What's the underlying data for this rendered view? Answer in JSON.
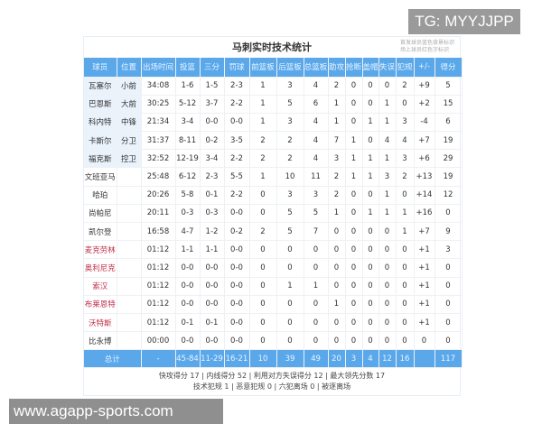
{
  "watermark": "TG: MYYJJPP",
  "site": "www.agapp-sports.com",
  "title": "马刺实时技术统计",
  "note": [
    "首发球员蓝色背景标识",
    "场上球员红色字标识"
  ],
  "colors": {
    "header": "#5aa8ea",
    "starter_bg": "#eaf2fb",
    "on_court_text": "#c0304a"
  },
  "headers": [
    "球员",
    "位置",
    "出场时间",
    "投篮",
    "三分",
    "罚球",
    "前篮板",
    "后篮板",
    "总篮板",
    "助攻",
    "抢断",
    "盖帽",
    "失误",
    "犯规",
    "+/-",
    "得分"
  ],
  "rows": [
    {
      "starter": true,
      "on_court": false,
      "cells": [
        "瓦塞尔",
        "小前",
        "34:08",
        "1-6",
        "1-5",
        "2-3",
        "1",
        "3",
        "4",
        "2",
        "0",
        "0",
        "0",
        "2",
        "+9",
        "5"
      ]
    },
    {
      "starter": true,
      "on_court": false,
      "cells": [
        "巴恩斯",
        "大前",
        "30:25",
        "5-12",
        "3-7",
        "2-2",
        "1",
        "5",
        "6",
        "1",
        "0",
        "0",
        "1",
        "0",
        "+2",
        "15"
      ]
    },
    {
      "starter": true,
      "on_court": false,
      "cells": [
        "科内特",
        "中锋",
        "21:34",
        "3-4",
        "0-0",
        "0-0",
        "1",
        "3",
        "4",
        "1",
        "0",
        "1",
        "1",
        "3",
        "-4",
        "6"
      ]
    },
    {
      "starter": true,
      "on_court": false,
      "cells": [
        "卡斯尔",
        "分卫",
        "31:37",
        "8-11",
        "0-2",
        "3-5",
        "2",
        "2",
        "4",
        "7",
        "1",
        "0",
        "4",
        "4",
        "+7",
        "19"
      ]
    },
    {
      "starter": true,
      "on_court": false,
      "cells": [
        "福克斯",
        "控卫",
        "32:52",
        "12-19",
        "3-4",
        "2-2",
        "2",
        "2",
        "4",
        "3",
        "1",
        "1",
        "1",
        "3",
        "+6",
        "29"
      ]
    },
    {
      "starter": false,
      "on_court": false,
      "cells": [
        "文班亚马",
        "",
        "25:48",
        "6-12",
        "2-3",
        "5-5",
        "1",
        "10",
        "11",
        "2",
        "1",
        "1",
        "3",
        "2",
        "+13",
        "19"
      ]
    },
    {
      "starter": false,
      "on_court": false,
      "cells": [
        "哈珀",
        "",
        "20:26",
        "5-8",
        "0-1",
        "2-2",
        "0",
        "3",
        "3",
        "2",
        "0",
        "0",
        "1",
        "0",
        "+14",
        "12"
      ]
    },
    {
      "starter": false,
      "on_court": false,
      "cells": [
        "尚帕尼",
        "",
        "20:11",
        "0-3",
        "0-3",
        "0-0",
        "0",
        "5",
        "5",
        "1",
        "0",
        "1",
        "1",
        "1",
        "+16",
        "0"
      ]
    },
    {
      "starter": false,
      "on_court": false,
      "cells": [
        "凯尔登",
        "",
        "16:58",
        "4-7",
        "1-2",
        "0-2",
        "2",
        "5",
        "7",
        "0",
        "0",
        "0",
        "0",
        "1",
        "+7",
        "9"
      ]
    },
    {
      "starter": false,
      "on_court": true,
      "cells": [
        "麦克劳林",
        "",
        "01:12",
        "1-1",
        "1-1",
        "0-0",
        "0",
        "0",
        "0",
        "0",
        "0",
        "0",
        "0",
        "0",
        "+1",
        "3"
      ]
    },
    {
      "starter": false,
      "on_court": true,
      "cells": [
        "奥利尼克",
        "",
        "01:12",
        "0-0",
        "0-0",
        "0-0",
        "0",
        "0",
        "0",
        "0",
        "0",
        "0",
        "0",
        "0",
        "+1",
        "0"
      ]
    },
    {
      "starter": false,
      "on_court": true,
      "cells": [
        "索汉",
        "",
        "01:12",
        "0-0",
        "0-0",
        "0-0",
        "0",
        "1",
        "1",
        "0",
        "0",
        "0",
        "0",
        "0",
        "+1",
        "0"
      ]
    },
    {
      "starter": false,
      "on_court": true,
      "cells": [
        "布莱恩特",
        "",
        "01:12",
        "0-0",
        "0-0",
        "0-0",
        "0",
        "0",
        "0",
        "1",
        "0",
        "0",
        "0",
        "0",
        "+1",
        "0"
      ]
    },
    {
      "starter": false,
      "on_court": true,
      "cells": [
        "沃特斯",
        "",
        "01:12",
        "0-1",
        "0-1",
        "0-0",
        "0",
        "0",
        "0",
        "0",
        "0",
        "0",
        "0",
        "0",
        "+1",
        "0"
      ]
    },
    {
      "starter": false,
      "on_court": false,
      "cells": [
        "比永博",
        "",
        "00:00",
        "0-0",
        "0-0",
        "0-0",
        "0",
        "0",
        "0",
        "0",
        "0",
        "0",
        "0",
        "0",
        "0",
        "0"
      ]
    }
  ],
  "total": [
    "总计",
    "",
    "-",
    "45-84",
    "11-29",
    "16-21",
    "10",
    "39",
    "49",
    "20",
    "3",
    "4",
    "12",
    "16",
    "",
    "117"
  ],
  "footer": [
    "快攻得分 17 | 内线得分 52 | 利用对方失误得分 12 | 最大领先分数 17",
    "技术犯规 1 | 恶意犯规 0 | 六犯离场 0 | 被逐离场"
  ]
}
